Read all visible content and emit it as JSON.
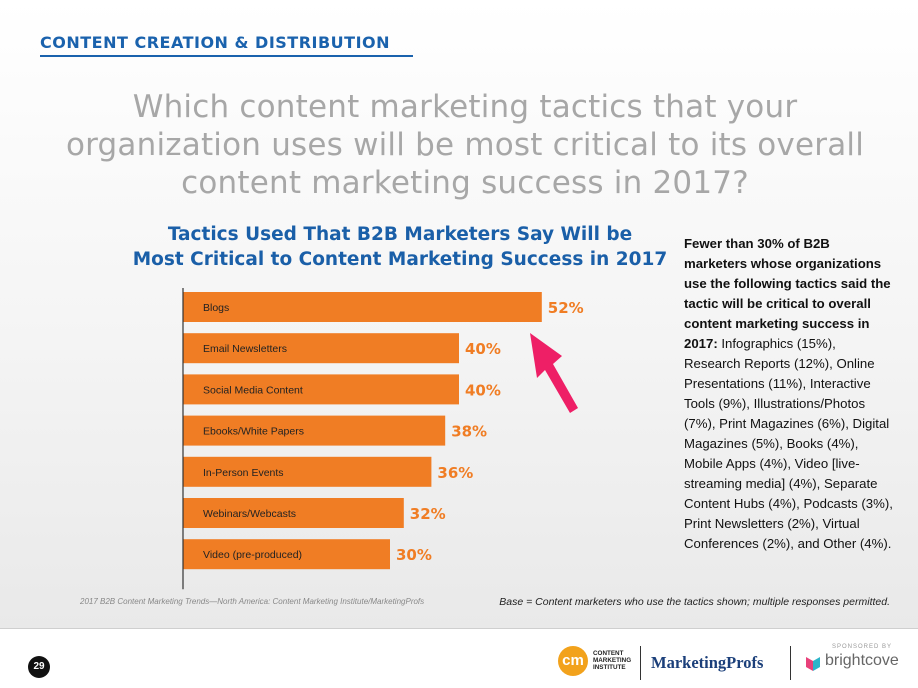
{
  "header": {
    "section": "CONTENT CREATION & DISTRIBUTION"
  },
  "question": {
    "line1": "Which content marketing tactics that your",
    "line2": "organization uses will be most critical to its overall",
    "line3": "content marketing success in 2017?"
  },
  "chart_data": {
    "type": "bar",
    "orientation": "horizontal",
    "title_line1": "Tactics Used That B2B Marketers Say Will be",
    "title_line2": "Most Critical to Content Marketing Success in 2017",
    "categories": [
      "Blogs",
      "Email Newsletters",
      "Social Media Content",
      "Ebooks/White Papers",
      "In-Person Events",
      "Webinars/Webcasts",
      "Video (pre-produced)"
    ],
    "values": [
      52,
      40,
      40,
      38,
      36,
      32,
      30
    ],
    "value_labels": [
      "52%",
      "40%",
      "40%",
      "38%",
      "36%",
      "32%",
      "30%"
    ],
    "unit": "%",
    "bar_color": "#f07d24",
    "label_color": "#f07d24",
    "highlight": {
      "category": "Blogs",
      "marker": "arrow-icon",
      "color": "#ee1f66"
    }
  },
  "note": {
    "bold": "Fewer than 30% of B2B marketers whose organizations use the following tactics said the tactic will be critical to overall content marketing success in 2017:",
    "list": " Infographics (15%), Research Reports (12%), Online Presentations (11%), Interactive Tools (9%), Illustrations/Photos (7%), Print Magazines (6%), Digital Magazines (5%), Books (4%), Mobile Apps (4%), Video [live-streaming media] (4%), Separate Content Hubs (4%), Podcasts (3%), Print Newsletters (2%), Virtual Conferences (2%), and Other (4%)."
  },
  "source": "2017 B2B Content Marketing Trends—North America: Content Marketing Institute/MarketingProfs",
  "base": "Base = Content marketers who use the tactics shown; multiple responses permitted.",
  "footer": {
    "page_number": "29",
    "cmi_logo": "cm",
    "cmi_text": "CONTENT MARKETING INSTITUTE",
    "marketingprofs": "MarketingProfs",
    "sponsored": "SPONSORED BY",
    "brightcove": "brightcove"
  }
}
